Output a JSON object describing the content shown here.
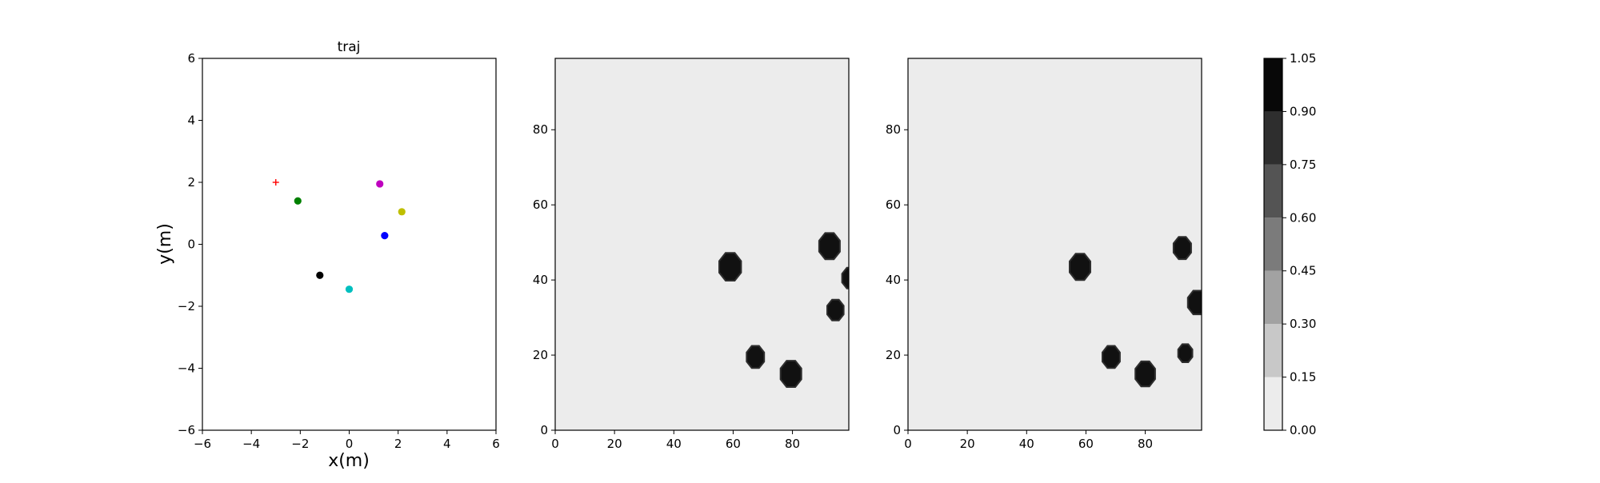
{
  "chart_data": [
    {
      "type": "scatter",
      "title": "traj",
      "xlabel": "x(m)",
      "ylabel": "y(m)",
      "xlim": [
        -6,
        6
      ],
      "ylim": [
        -6,
        6
      ],
      "xticks": [
        "−6",
        "−4",
        "−2",
        "0",
        "2",
        "4",
        "6"
      ],
      "yticks": [
        "−6",
        "−4",
        "−2",
        "0",
        "2",
        "4",
        "6"
      ],
      "grid": false,
      "points": [
        {
          "x": -3.0,
          "y": 2.0,
          "marker": "plus",
          "color": "#ff0000"
        },
        {
          "x": -2.1,
          "y": 1.4,
          "marker": "circle",
          "color": "#008000"
        },
        {
          "x": -1.2,
          "y": -1.0,
          "marker": "circle",
          "color": "#000000"
        },
        {
          "x": 0.0,
          "y": -1.45,
          "marker": "circle",
          "color": "#00bfbf"
        },
        {
          "x": 1.25,
          "y": 1.95,
          "marker": "circle",
          "color": "#bf00bf"
        },
        {
          "x": 1.45,
          "y": 0.28,
          "marker": "circle",
          "color": "#0000ff"
        },
        {
          "x": 2.15,
          "y": 1.05,
          "marker": "circle",
          "color": "#bfbf00"
        }
      ]
    },
    {
      "type": "heatmap",
      "title": "",
      "xlim": [
        0,
        99
      ],
      "ylim": [
        0,
        99
      ],
      "xticks": [
        "0",
        "20",
        "40",
        "60",
        "80"
      ],
      "yticks": [
        "0",
        "20",
        "40",
        "60",
        "80"
      ],
      "background_value": 0.05,
      "blobs": [
        {
          "x": 59,
          "y": 43.5,
          "r": 4
        },
        {
          "x": 67.5,
          "y": 19.5,
          "r": 3.2
        },
        {
          "x": 79.5,
          "y": 15,
          "r": 3.8
        },
        {
          "x": 92.5,
          "y": 49,
          "r": 3.8
        },
        {
          "x": 94.5,
          "y": 32,
          "r": 3
        },
        {
          "x": 99.5,
          "y": 40.5,
          "r": 3
        }
      ]
    },
    {
      "type": "heatmap",
      "title": "",
      "xlim": [
        0,
        99
      ],
      "ylim": [
        0,
        99
      ],
      "xticks": [
        "0",
        "20",
        "40",
        "60",
        "80"
      ],
      "yticks": [
        "0",
        "20",
        "40",
        "60",
        "80"
      ],
      "background_value": 0.05,
      "blobs": [
        {
          "x": 58,
          "y": 43.5,
          "r": 3.8
        },
        {
          "x": 68.5,
          "y": 19.5,
          "r": 3.2
        },
        {
          "x": 80,
          "y": 15,
          "r": 3.6
        },
        {
          "x": 92.5,
          "y": 48.5,
          "r": 3.2
        },
        {
          "x": 97.5,
          "y": 34,
          "r": 3.4
        },
        {
          "x": 93.5,
          "y": 20.5,
          "r": 2.6
        }
      ]
    }
  ],
  "colorbar": {
    "levels": [
      0.0,
      0.15,
      0.3,
      0.45,
      0.6,
      0.75,
      0.9,
      1.05
    ],
    "labels": [
      "0.00",
      "0.15",
      "0.30",
      "0.45",
      "0.60",
      "0.75",
      "0.90",
      "1.05"
    ],
    "colors": [
      "#ececec",
      "#c8c8c8",
      "#a2a2a2",
      "#7b7b7b",
      "#545454",
      "#2e2e2e",
      "#080808"
    ]
  }
}
